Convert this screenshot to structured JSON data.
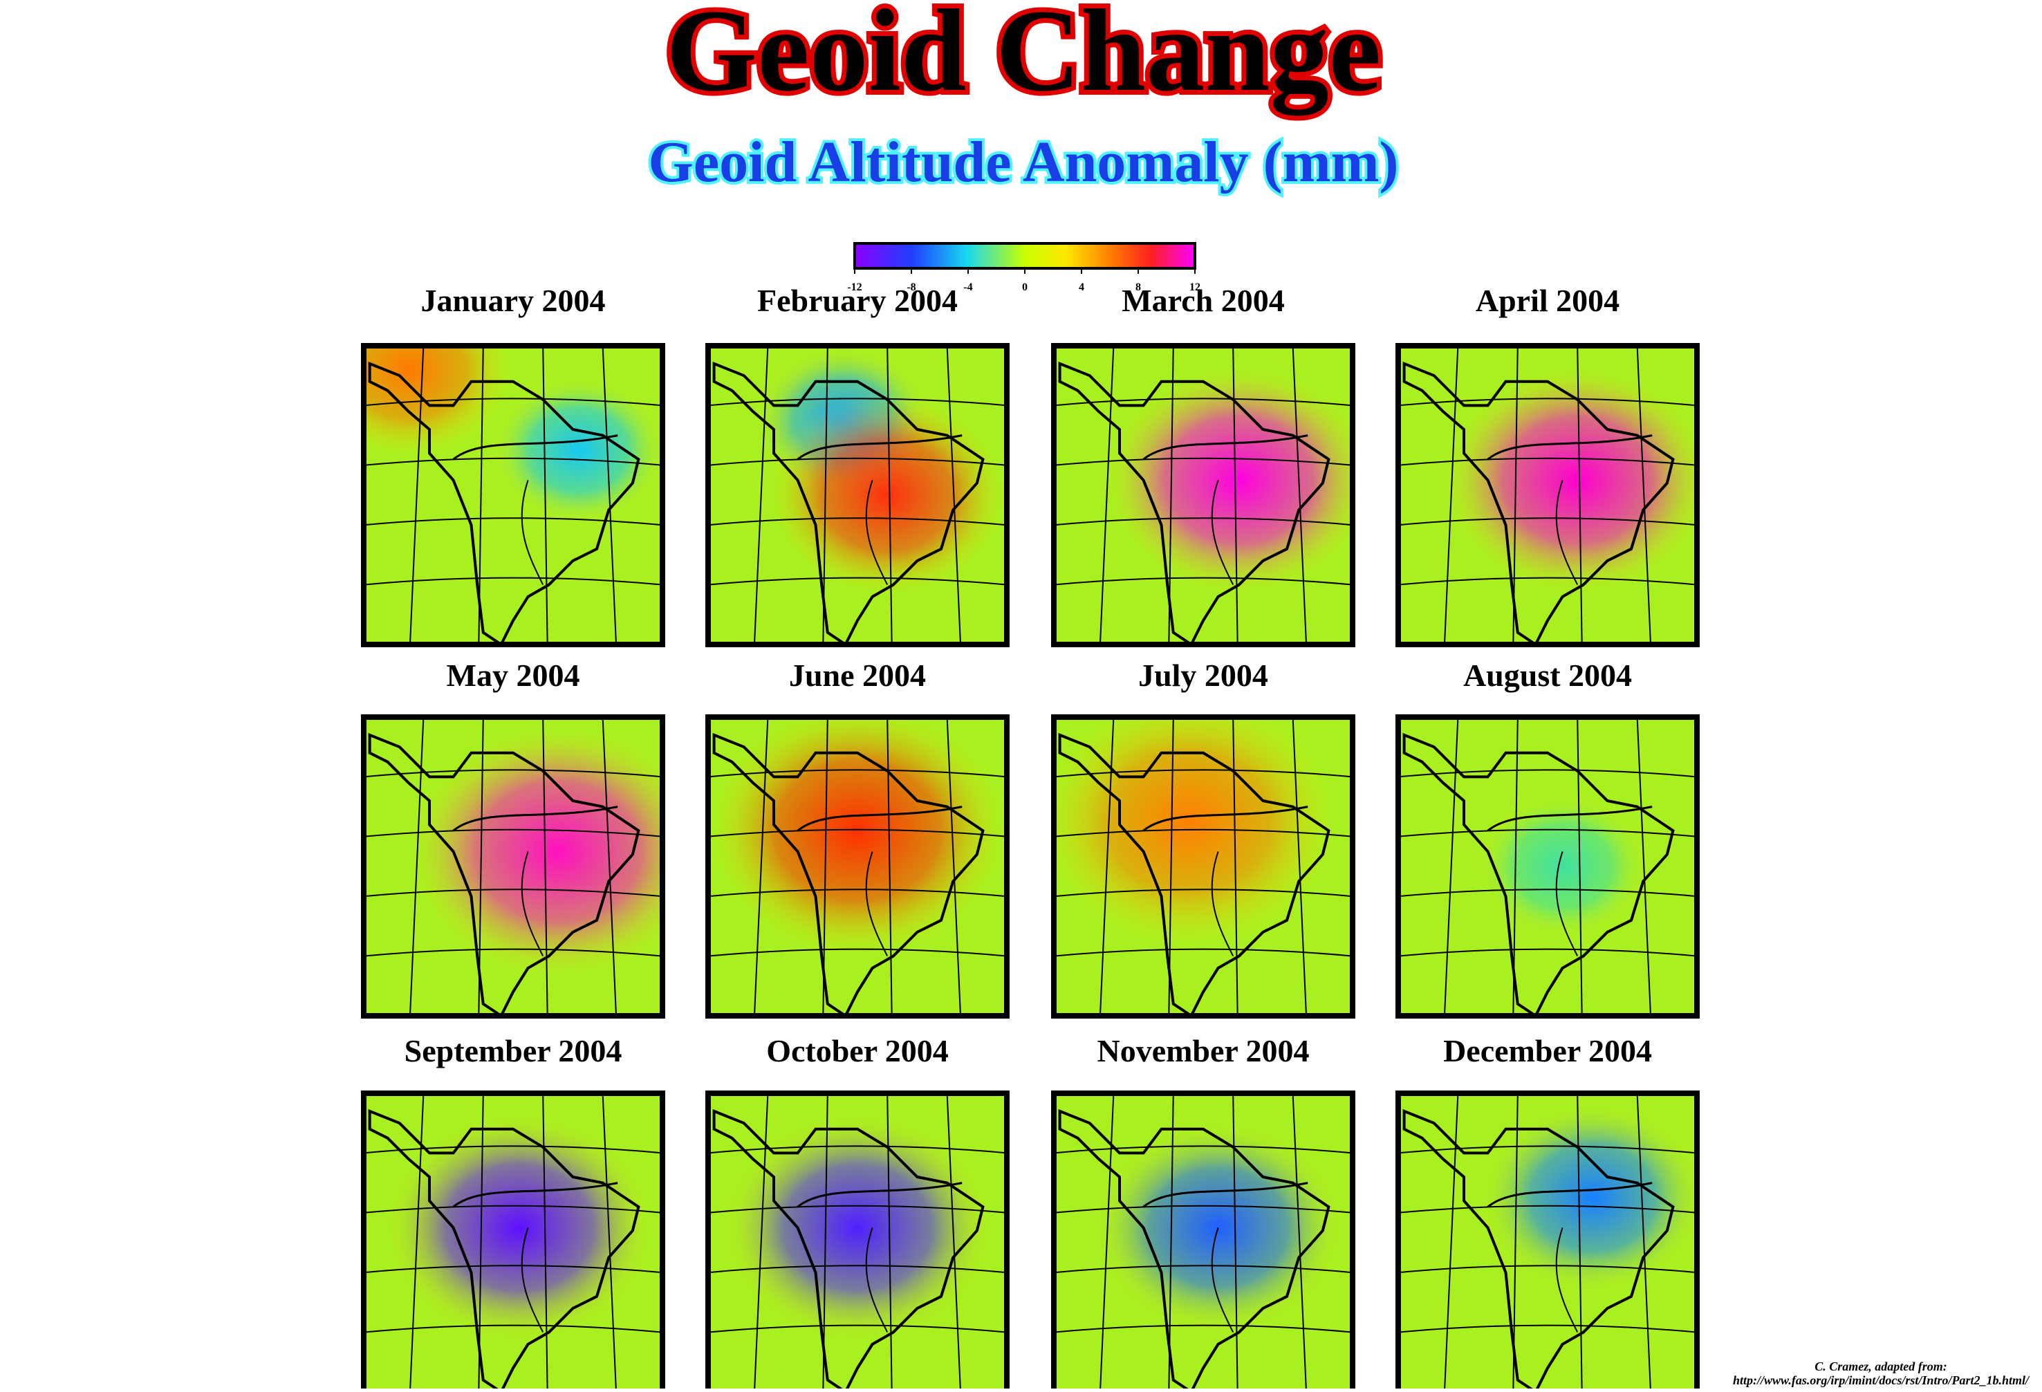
{
  "title": "Geoid Change",
  "subtitle": "Geoid Altitude Anomaly (mm)",
  "colorbar": {
    "ticks": [
      -12,
      -8,
      -4,
      0,
      4,
      8,
      12
    ]
  },
  "panels": [
    {
      "label": "January 2004"
    },
    {
      "label": "February 2004"
    },
    {
      "label": "March 2004"
    },
    {
      "label": "April 2004"
    },
    {
      "label": "May 2004"
    },
    {
      "label": "June 2004"
    },
    {
      "label": "July 2004"
    },
    {
      "label": "August 2004"
    },
    {
      "label": "September 2004"
    },
    {
      "label": "October 2004"
    },
    {
      "label": "November 2004"
    },
    {
      "label": "December 2004"
    }
  ],
  "credit": {
    "line1": "C. Cramez, adapted from:",
    "line2": "http://www.fas.org/irp/imint/docs/rst/Intro/Part2_1b.html/"
  }
}
